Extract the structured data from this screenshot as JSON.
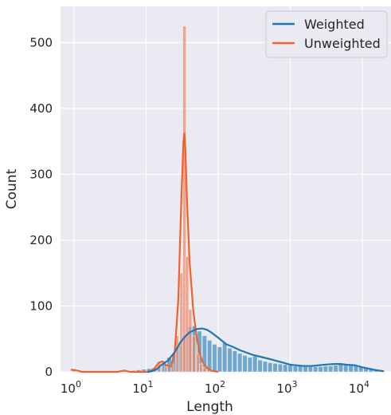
{
  "chart_data": {
    "type": "bar",
    "title": "",
    "xlabel": "Length",
    "ylabel": "Count",
    "x_scale": "log10",
    "xlim": [
      0.65,
      25000
    ],
    "ylim": [
      0,
      555
    ],
    "x_ticks": [
      {
        "value": 1,
        "base": "10",
        "exp": "0"
      },
      {
        "value": 10,
        "base": "10",
        "exp": "1"
      },
      {
        "value": 100,
        "base": "10",
        "exp": "2"
      },
      {
        "value": 1000,
        "base": "10",
        "exp": "3"
      },
      {
        "value": 10000,
        "base": "10",
        "exp": "4"
      }
    ],
    "y_ticks": [
      0,
      100,
      200,
      300,
      400,
      500
    ],
    "grid": true,
    "legend_position": "top-right",
    "series": [
      {
        "name": "Weighted",
        "color": "#1f77b4",
        "bar_color": "#5b9bc9",
        "bins_log10_edges": [
          0.8,
          4.3
        ],
        "bin_counts": [
          2,
          3,
          4,
          5,
          6,
          8,
          12,
          22,
          28,
          40,
          55,
          68,
          70,
          62,
          55,
          48,
          42,
          38,
          44,
          36,
          32,
          28,
          25,
          22,
          24,
          18,
          16,
          14,
          13,
          12,
          11,
          10,
          9,
          9,
          8,
          8,
          8,
          8,
          9,
          9,
          10,
          12,
          11,
          10,
          9,
          8,
          6,
          4,
          3,
          2
        ],
        "kde": [
          [
            10.5,
            0
          ],
          [
            12,
            1
          ],
          [
            14,
            4
          ],
          [
            16,
            10
          ],
          [
            20,
            17
          ],
          [
            25,
            30
          ],
          [
            30,
            45
          ],
          [
            35,
            54
          ],
          [
            40,
            60
          ],
          [
            50,
            65
          ],
          [
            60,
            66
          ],
          [
            70,
            64
          ],
          [
            80,
            60
          ],
          [
            100,
            52
          ],
          [
            130,
            42
          ],
          [
            160,
            38
          ],
          [
            200,
            33
          ],
          [
            300,
            26
          ],
          [
            500,
            20
          ],
          [
            800,
            14
          ],
          [
            1000,
            11
          ],
          [
            1500,
            9
          ],
          [
            2000,
            9
          ],
          [
            3000,
            11
          ],
          [
            4000,
            12
          ],
          [
            5000,
            12
          ],
          [
            6000,
            11
          ],
          [
            8000,
            10
          ],
          [
            10000,
            7
          ],
          [
            15000,
            3
          ],
          [
            20000,
            1
          ]
        ]
      },
      {
        "name": "Unweighted",
        "color": "#f2612b",
        "bar_color": "#f08a68",
        "bins_log10_edges": [
          0.8,
          4.3
        ],
        "bin_counts": [
          3,
          0,
          0,
          0,
          0,
          0,
          0,
          0,
          0,
          0,
          0,
          0,
          0,
          0,
          0,
          0,
          0,
          0,
          0,
          0,
          0,
          0,
          0,
          0,
          0,
          0,
          0,
          0,
          0,
          0,
          0,
          0,
          0,
          0,
          0,
          0,
          0,
          0,
          0,
          0,
          0,
          0,
          0,
          0,
          0,
          0,
          0,
          0,
          0,
          0
        ],
        "bins_detail": [
          {
            "x": 1.0,
            "count": 2
          },
          {
            "x": 5.0,
            "count": 3
          },
          {
            "x": 15,
            "count": 15
          },
          {
            "x": 19,
            "count": 8
          },
          {
            "x": 23,
            "count": 12
          },
          {
            "x": 27,
            "count": 55
          },
          {
            "x": 31,
            "count": 150
          },
          {
            "x": 34,
            "count": 525
          },
          {
            "x": 37,
            "count": 175
          },
          {
            "x": 41,
            "count": 95
          },
          {
            "x": 46,
            "count": 55
          },
          {
            "x": 52,
            "count": 28
          },
          {
            "x": 58,
            "count": 12
          },
          {
            "x": 65,
            "count": 7
          },
          {
            "x": 73,
            "count": 4
          }
        ],
        "kde": [
          [
            0.9,
            3
          ],
          [
            1.0,
            3
          ],
          [
            1.1,
            2
          ],
          [
            1.3,
            0
          ],
          [
            4.0,
            0
          ],
          [
            5.0,
            2
          ],
          [
            6.0,
            0
          ],
          [
            11,
            0
          ],
          [
            13,
            5
          ],
          [
            15,
            14
          ],
          [
            17,
            16
          ],
          [
            19,
            10
          ],
          [
            22,
            8
          ],
          [
            25,
            30
          ],
          [
            28,
            110
          ],
          [
            31,
            270
          ],
          [
            33,
            350
          ],
          [
            34,
            362
          ],
          [
            35,
            340
          ],
          [
            37,
            260
          ],
          [
            40,
            170
          ],
          [
            45,
            95
          ],
          [
            50,
            55
          ],
          [
            55,
            30
          ],
          [
            60,
            16
          ],
          [
            70,
            6
          ],
          [
            80,
            2
          ],
          [
            100,
            0
          ]
        ]
      }
    ]
  }
}
